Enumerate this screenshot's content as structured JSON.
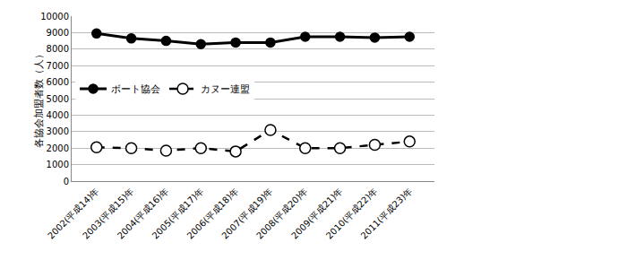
{
  "chart_data": {
    "type": "line",
    "y_label": "各協会加盟者数（人）",
    "categories": [
      "2002(平成14)年",
      "2003(平成15)年",
      "2004(平成16)年",
      "2005(平成17)年",
      "2006(平成18)年",
      "2007(平成19)年",
      "2008(平成20)年",
      "2009(平成21)年",
      "2010(平成22)年",
      "2011(平成23)年"
    ],
    "series": [
      {
        "name": "ボート協会",
        "color": "#000000",
        "marker": "filled_circle",
        "line_style": "solid",
        "values": [
          8950,
          8650,
          8500,
          8300,
          8400,
          8400,
          8750,
          8750,
          8700,
          8750
        ]
      },
      {
        "name": "カヌー連盟",
        "color": "#000000",
        "marker": "open_circle",
        "line_style": "dash",
        "values": [
          2050,
          2000,
          1850,
          2000,
          1800,
          3100,
          2000,
          2000,
          2200,
          2400
        ]
      }
    ],
    "ylim": [
      0,
      10000
    ],
    "yticks": [
      0,
      1000,
      2000,
      3000,
      4000,
      5000,
      6000,
      7000,
      8000,
      9000,
      10000
    ],
    "grid": true,
    "legend": "left"
  }
}
